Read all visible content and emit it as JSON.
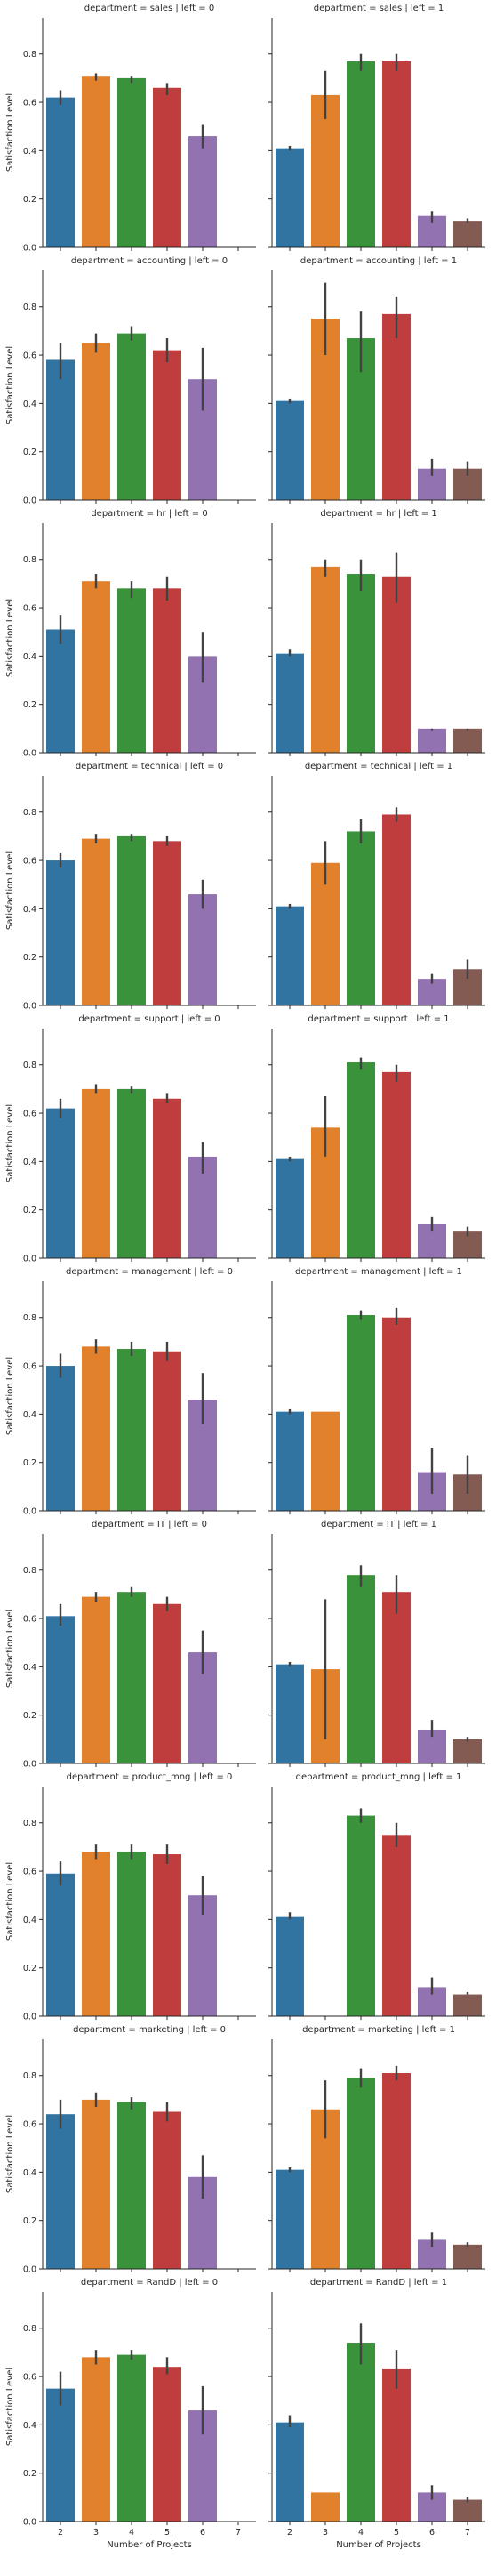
{
  "chart_data": {
    "type": "bar",
    "layout": "facet-grid",
    "row_variable": "department",
    "col_variable": "left",
    "xlabel": "Number of Projects",
    "ylabel": "Satisfaction Level",
    "categories": [
      "2",
      "3",
      "4",
      "5",
      "6",
      "7"
    ],
    "ylim": [
      0,
      0.95
    ],
    "yticks": [
      "0.0",
      "0.2",
      "0.4",
      "0.6",
      "0.8"
    ],
    "colors": [
      "#3274a1",
      "#e1812c",
      "#3a923a",
      "#c03d3e",
      "#9372b2",
      "#845b53"
    ],
    "grid": false,
    "legend": "none",
    "panels": [
      {
        "title": "department = sales | left = 0",
        "values": [
          0.62,
          0.71,
          0.7,
          0.66,
          0.46,
          null
        ],
        "ci": [
          [
            0.59,
            0.65
          ],
          [
            0.69,
            0.72
          ],
          [
            0.68,
            0.71
          ],
          [
            0.63,
            0.68
          ],
          [
            0.41,
            0.51
          ],
          null
        ]
      },
      {
        "title": "department = sales | left = 1",
        "values": [
          0.41,
          0.63,
          0.77,
          0.77,
          0.13,
          0.11
        ],
        "ci": [
          [
            0.4,
            0.42
          ],
          [
            0.53,
            0.73
          ],
          [
            0.73,
            0.8
          ],
          [
            0.73,
            0.8
          ],
          [
            0.1,
            0.15
          ],
          [
            0.1,
            0.12
          ]
        ]
      },
      {
        "title": "department = accounting | left = 0",
        "values": [
          0.58,
          0.65,
          0.69,
          0.62,
          0.5,
          null
        ],
        "ci": [
          [
            0.5,
            0.65
          ],
          [
            0.61,
            0.69
          ],
          [
            0.66,
            0.72
          ],
          [
            0.57,
            0.67
          ],
          [
            0.37,
            0.63
          ],
          null
        ]
      },
      {
        "title": "department = accounting | left = 1",
        "values": [
          0.41,
          0.75,
          0.67,
          0.77,
          0.13,
          0.13
        ],
        "ci": [
          [
            0.4,
            0.42
          ],
          [
            0.6,
            0.9
          ],
          [
            0.53,
            0.78
          ],
          [
            0.67,
            0.84
          ],
          [
            0.1,
            0.17
          ],
          [
            0.1,
            0.16
          ]
        ]
      },
      {
        "title": "department = hr | left = 0",
        "values": [
          0.51,
          0.71,
          0.68,
          0.68,
          0.4,
          null
        ],
        "ci": [
          [
            0.45,
            0.57
          ],
          [
            0.68,
            0.74
          ],
          [
            0.64,
            0.71
          ],
          [
            0.63,
            0.73
          ],
          [
            0.29,
            0.5
          ],
          null
        ]
      },
      {
        "title": "department = hr | left = 1",
        "values": [
          0.41,
          0.77,
          0.74,
          0.73,
          0.1,
          0.1
        ],
        "ci": [
          [
            0.4,
            0.43
          ],
          [
            0.73,
            0.8
          ],
          [
            0.67,
            0.8
          ],
          [
            0.62,
            0.83
          ],
          [
            0.09,
            0.1
          ],
          [
            0.09,
            0.1
          ]
        ]
      },
      {
        "title": "department = technical | left = 0",
        "values": [
          0.6,
          0.69,
          0.7,
          0.68,
          0.46,
          null
        ],
        "ci": [
          [
            0.57,
            0.63
          ],
          [
            0.67,
            0.71
          ],
          [
            0.68,
            0.71
          ],
          [
            0.66,
            0.7
          ],
          [
            0.4,
            0.52
          ],
          null
        ]
      },
      {
        "title": "department = technical | left = 1",
        "values": [
          0.41,
          0.59,
          0.72,
          0.79,
          0.11,
          0.15
        ],
        "ci": [
          [
            0.4,
            0.42
          ],
          [
            0.5,
            0.68
          ],
          [
            0.67,
            0.77
          ],
          [
            0.76,
            0.82
          ],
          [
            0.09,
            0.13
          ],
          [
            0.11,
            0.19
          ]
        ]
      },
      {
        "title": "department = support | left = 0",
        "values": [
          0.62,
          0.7,
          0.7,
          0.66,
          0.42,
          null
        ],
        "ci": [
          [
            0.58,
            0.66
          ],
          [
            0.68,
            0.72
          ],
          [
            0.68,
            0.71
          ],
          [
            0.64,
            0.68
          ],
          [
            0.35,
            0.48
          ],
          null
        ]
      },
      {
        "title": "department = support | left = 1",
        "values": [
          0.41,
          0.54,
          0.81,
          0.77,
          0.14,
          0.11
        ],
        "ci": [
          [
            0.4,
            0.42
          ],
          [
            0.42,
            0.67
          ],
          [
            0.78,
            0.83
          ],
          [
            0.73,
            0.8
          ],
          [
            0.11,
            0.17
          ],
          [
            0.09,
            0.13
          ]
        ]
      },
      {
        "title": "department = management | left = 0",
        "values": [
          0.6,
          0.68,
          0.67,
          0.66,
          0.46,
          null
        ],
        "ci": [
          [
            0.55,
            0.65
          ],
          [
            0.65,
            0.71
          ],
          [
            0.64,
            0.7
          ],
          [
            0.62,
            0.7
          ],
          [
            0.36,
            0.57
          ],
          null
        ]
      },
      {
        "title": "department = management | left = 1",
        "values": [
          0.41,
          0.41,
          0.81,
          0.8,
          0.16,
          0.15
        ],
        "ci": [
          [
            0.4,
            0.42
          ],
          null,
          [
            0.79,
            0.83
          ],
          [
            0.77,
            0.84
          ],
          [
            0.07,
            0.26
          ],
          [
            0.07,
            0.23
          ]
        ]
      },
      {
        "title": "department = IT | left = 0",
        "values": [
          0.61,
          0.69,
          0.71,
          0.66,
          0.46,
          null
        ],
        "ci": [
          [
            0.57,
            0.66
          ],
          [
            0.67,
            0.71
          ],
          [
            0.69,
            0.73
          ],
          [
            0.63,
            0.69
          ],
          [
            0.37,
            0.55
          ],
          null
        ]
      },
      {
        "title": "department = IT | left = 1",
        "values": [
          0.41,
          0.39,
          0.78,
          0.71,
          0.14,
          0.1
        ],
        "ci": [
          [
            0.4,
            0.42
          ],
          [
            0.1,
            0.68
          ],
          [
            0.73,
            0.82
          ],
          [
            0.62,
            0.78
          ],
          [
            0.11,
            0.18
          ],
          [
            0.09,
            0.11
          ]
        ]
      },
      {
        "title": "department = product_mng | left = 0",
        "values": [
          0.59,
          0.68,
          0.68,
          0.67,
          0.5,
          null
        ],
        "ci": [
          [
            0.54,
            0.64
          ],
          [
            0.65,
            0.71
          ],
          [
            0.65,
            0.71
          ],
          [
            0.63,
            0.71
          ],
          [
            0.42,
            0.58
          ],
          null
        ]
      },
      {
        "title": "department = product_mng | left = 1",
        "values": [
          0.41,
          null,
          0.83,
          0.75,
          0.12,
          0.09
        ],
        "ci": [
          [
            0.4,
            0.43
          ],
          null,
          [
            0.8,
            0.86
          ],
          [
            0.7,
            0.8
          ],
          [
            0.09,
            0.16
          ],
          [
            0.09,
            0.1
          ]
        ]
      },
      {
        "title": "department = marketing | left = 0",
        "values": [
          0.64,
          0.7,
          0.69,
          0.65,
          0.38,
          null
        ],
        "ci": [
          [
            0.58,
            0.7
          ],
          [
            0.67,
            0.73
          ],
          [
            0.66,
            0.71
          ],
          [
            0.61,
            0.69
          ],
          [
            0.29,
            0.47
          ],
          null
        ]
      },
      {
        "title": "department = marketing | left = 1",
        "values": [
          0.41,
          0.66,
          0.79,
          0.81,
          0.12,
          0.1
        ],
        "ci": [
          [
            0.4,
            0.42
          ],
          [
            0.54,
            0.78
          ],
          [
            0.75,
            0.83
          ],
          [
            0.78,
            0.84
          ],
          [
            0.09,
            0.15
          ],
          [
            0.09,
            0.11
          ]
        ]
      },
      {
        "title": "department = RandD | left = 0",
        "values": [
          0.55,
          0.68,
          0.69,
          0.64,
          0.46,
          null
        ],
        "ci": [
          [
            0.48,
            0.62
          ],
          [
            0.65,
            0.71
          ],
          [
            0.67,
            0.71
          ],
          [
            0.61,
            0.68
          ],
          [
            0.36,
            0.56
          ],
          null
        ]
      },
      {
        "title": "department = RandD | left = 1",
        "values": [
          0.41,
          0.12,
          0.74,
          0.63,
          0.12,
          0.09
        ],
        "ci": [
          [
            0.39,
            0.44
          ],
          null,
          [
            0.65,
            0.82
          ],
          [
            0.55,
            0.71
          ],
          [
            0.09,
            0.15
          ],
          [
            0.08,
            0.1
          ]
        ]
      }
    ]
  }
}
